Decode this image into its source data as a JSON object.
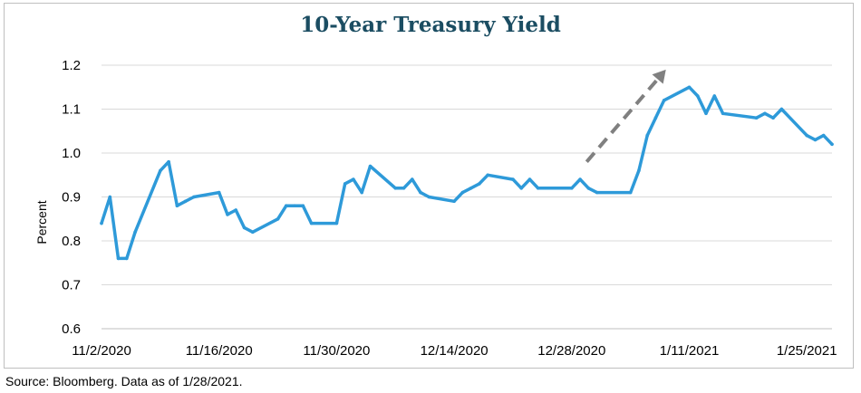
{
  "chart_data": {
    "type": "line",
    "title": "10-Year Treasury Yield",
    "ylabel": "Percent",
    "xlabel": "",
    "ylim": [
      0.6,
      1.2
    ],
    "yticks": [
      "0.6",
      "0.7",
      "0.8",
      "0.9",
      "1.0",
      "1.1",
      "1.2"
    ],
    "xtick_labels": [
      "11/2/2020",
      "11/16/2020",
      "11/30/2020",
      "12/14/2020",
      "12/28/2020",
      "1/11/2021",
      "1/25/2021"
    ],
    "xtick_dates": [
      "2020-11-02",
      "2020-11-16",
      "2020-11-30",
      "2020-12-14",
      "2020-12-28",
      "2021-01-11",
      "2021-01-25"
    ],
    "grid": true,
    "line_color": "#2e9ad9",
    "annotation": {
      "type": "dashed-arrow",
      "color": "#808080",
      "direction": "up-right"
    },
    "series": [
      {
        "points": [
          [
            "2020-11-02",
            0.84
          ],
          [
            "2020-11-03",
            0.9
          ],
          [
            "2020-11-04",
            0.76
          ],
          [
            "2020-11-05",
            0.76
          ],
          [
            "2020-11-06",
            0.82
          ],
          [
            "2020-11-09",
            0.96
          ],
          [
            "2020-11-10",
            0.98
          ],
          [
            "2020-11-11",
            0.88
          ],
          [
            "2020-11-12",
            0.89
          ],
          [
            "2020-11-13",
            0.9
          ],
          [
            "2020-11-16",
            0.91
          ],
          [
            "2020-11-17",
            0.86
          ],
          [
            "2020-11-18",
            0.87
          ],
          [
            "2020-11-19",
            0.83
          ],
          [
            "2020-11-20",
            0.82
          ],
          [
            "2020-11-23",
            0.85
          ],
          [
            "2020-11-24",
            0.88
          ],
          [
            "2020-11-25",
            0.88
          ],
          [
            "2020-11-26",
            0.88
          ],
          [
            "2020-11-27",
            0.84
          ],
          [
            "2020-11-30",
            0.84
          ],
          [
            "2020-12-01",
            0.93
          ],
          [
            "2020-12-02",
            0.94
          ],
          [
            "2020-12-03",
            0.91
          ],
          [
            "2020-12-04",
            0.97
          ],
          [
            "2020-12-07",
            0.92
          ],
          [
            "2020-12-08",
            0.92
          ],
          [
            "2020-12-09",
            0.94
          ],
          [
            "2020-12-10",
            0.91
          ],
          [
            "2020-12-11",
            0.9
          ],
          [
            "2020-12-14",
            0.89
          ],
          [
            "2020-12-15",
            0.91
          ],
          [
            "2020-12-16",
            0.92
          ],
          [
            "2020-12-17",
            0.93
          ],
          [
            "2020-12-18",
            0.95
          ],
          [
            "2020-12-21",
            0.94
          ],
          [
            "2020-12-22",
            0.92
          ],
          [
            "2020-12-23",
            0.94
          ],
          [
            "2020-12-24",
            0.92
          ],
          [
            "2020-12-28",
            0.92
          ],
          [
            "2020-12-29",
            0.94
          ],
          [
            "2020-12-30",
            0.92
          ],
          [
            "2020-12-31",
            0.91
          ],
          [
            "2021-01-04",
            0.91
          ],
          [
            "2021-01-05",
            0.96
          ],
          [
            "2021-01-06",
            1.04
          ],
          [
            "2021-01-07",
            1.08
          ],
          [
            "2021-01-08",
            1.12
          ],
          [
            "2021-01-11",
            1.15
          ],
          [
            "2021-01-12",
            1.13
          ],
          [
            "2021-01-13",
            1.09
          ],
          [
            "2021-01-14",
            1.13
          ],
          [
            "2021-01-15",
            1.09
          ],
          [
            "2021-01-19",
            1.08
          ],
          [
            "2021-01-20",
            1.09
          ],
          [
            "2021-01-21",
            1.08
          ],
          [
            "2021-01-22",
            1.1
          ],
          [
            "2021-01-25",
            1.04
          ],
          [
            "2021-01-26",
            1.03
          ],
          [
            "2021-01-27",
            1.04
          ],
          [
            "2021-01-28",
            1.02
          ]
        ]
      }
    ]
  },
  "source_note": "Source: Bloomberg. Data as of 1/28/2021."
}
